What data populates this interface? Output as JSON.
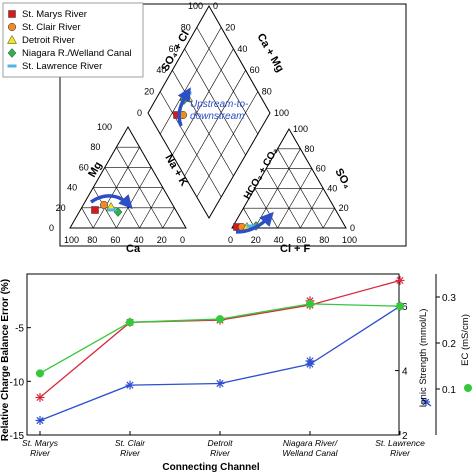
{
  "chart_data": [
    {
      "type": "scatter",
      "subtype": "piper-diagram",
      "legend": {
        "placement": "top-left",
        "entries": [
          {
            "label": "St. Marys River",
            "marker": "square",
            "color": "#d7191c"
          },
          {
            "label": "St. Clair River",
            "marker": "circle",
            "color": "#f08a24"
          },
          {
            "label": "Detroit River",
            "marker": "triangle",
            "color": "#f5e616"
          },
          {
            "label": "Niagara R./Welland Canal",
            "marker": "diamond",
            "color": "#2db34a"
          },
          {
            "label": "St. Lawrence River",
            "marker": "dash",
            "color": "#4fb6e3"
          }
        ]
      },
      "annotation": "Upstream-to-\ndownstream",
      "cation_triangle": {
        "axes": {
          "left": "Mg",
          "bottom": "Ca",
          "right": "Na + K"
        },
        "ticks": [
          "100",
          "80",
          "60",
          "40",
          "20",
          "0"
        ]
      },
      "anion_triangle": {
        "axes": {
          "left": "HCO₃ + CO₃",
          "right": "SO₄",
          "bottom": "Cl + F"
        },
        "ticks": [
          "0",
          "20",
          "40",
          "60",
          "80",
          "100"
        ]
      },
      "diamond": {
        "axes": {
          "upper_left": "SO₄ + Cl",
          "upper_right": "Ca + Mg"
        },
        "ticks": [
          "100",
          "80",
          "60",
          "40",
          "20",
          "0"
        ]
      }
    },
    {
      "type": "line",
      "xlabel": "Connecting Channel",
      "categories": [
        "St. Marys River",
        "St. Clair River",
        "Detroit River",
        "Niagara River/ Welland Canal",
        "St. Lawrence River"
      ],
      "grid": false,
      "axes": [
        {
          "id": "y1",
          "label": "Relative Charge Balance Error (%)",
          "ylim": [
            -15,
            0
          ],
          "ticks": [
            "-15",
            "-10",
            "-5"
          ],
          "color": "#d62a3c"
        },
        {
          "id": "y2",
          "label": "Ionic Strength (mmol/L)",
          "ylim": [
            2,
            7
          ],
          "ticks": [
            "2",
            "4",
            "6"
          ],
          "color": "#2e4fd0"
        },
        {
          "id": "y3",
          "label": "EC (mS/cm)",
          "ylim": [
            0,
            0.35
          ],
          "ticks": [
            "0.1",
            "0.2",
            "0.3"
          ],
          "color": "#35c83a"
        }
      ],
      "series": [
        {
          "axis": "y1",
          "marker": "asterisk",
          "color": "#d62a3c",
          "values": [
            -11.5,
            -4.5,
            -4.3,
            -2.9,
            -0.6
          ],
          "extra_markers": [
            {
              "index": 3,
              "value": -2.5
            }
          ]
        },
        {
          "axis": "y2",
          "marker": "asterisk",
          "color": "#2e4fd0",
          "values": [
            2.45,
            3.55,
            3.6,
            4.2,
            6.0
          ],
          "extra_markers": [
            {
              "index": 3,
              "value": 4.3
            }
          ]
        },
        {
          "axis": "y3",
          "marker": "circle",
          "color": "#35c83a",
          "values": [
            0.134,
            0.245,
            0.252,
            0.285,
            0.28
          ]
        }
      ]
    }
  ]
}
